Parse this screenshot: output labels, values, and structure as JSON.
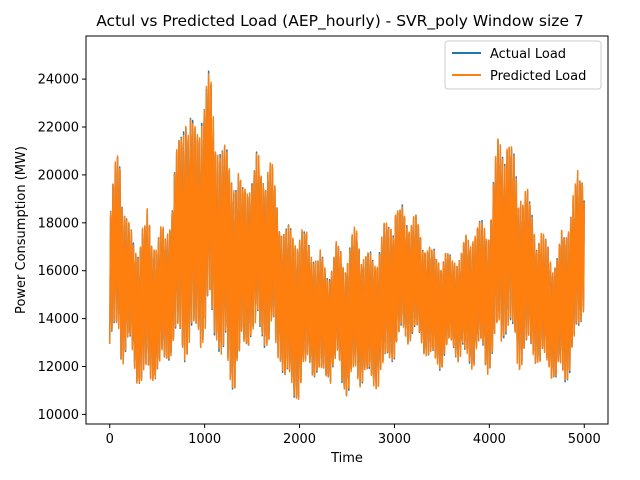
{
  "chart_data": {
    "type": "line",
    "title": "Actul vs Predicted Load (AEP_hourly) - SVR_poly  Window size 7",
    "xlabel": "Time",
    "ylabel": "Power Consumption (MW)",
    "xlim": [
      -250,
      5250
    ],
    "ylim": [
      9600,
      25800
    ],
    "x_ticks": [
      0,
      1000,
      2000,
      3000,
      4000,
      5000
    ],
    "x_tick_labels": [
      "0",
      "1000",
      "2000",
      "3000",
      "4000",
      "5000"
    ],
    "y_ticks": [
      10000,
      12000,
      14000,
      16000,
      18000,
      20000,
      22000,
      24000
    ],
    "y_tick_labels": [
      "10000",
      "12000",
      "14000",
      "16000",
      "18000",
      "20000",
      "22000",
      "24000"
    ],
    "grid": false,
    "legend_position": "top-right",
    "n_points": 5000,
    "envelope_note_x": [
      0,
      50,
      100,
      130,
      200,
      300,
      400,
      500,
      600,
      700,
      800,
      900,
      1000,
      1060,
      1100,
      1200,
      1300,
      1400,
      1500,
      1600,
      1700,
      1800,
      1900,
      2000,
      2100,
      2200,
      2300,
      2400,
      2500,
      2600,
      2700,
      2800,
      2900,
      3000,
      3100,
      3200,
      3300,
      3400,
      3500,
      3600,
      3700,
      3800,
      3900,
      4000,
      4100,
      4150,
      4200,
      4300,
      4400,
      4500,
      4600,
      4700,
      4800,
      4900,
      4950,
      5000
    ],
    "envelope_high": [
      18500,
      20300,
      22100,
      20000,
      18000,
      17500,
      18800,
      17600,
      18000,
      21000,
      23900,
      22000,
      24500,
      24800,
      22500,
      21500,
      21000,
      19800,
      21000,
      20900,
      21000,
      18500,
      18000,
      18200,
      17500,
      16900,
      16500,
      17300,
      17000,
      18200,
      16800,
      17200,
      18000,
      19000,
      18800,
      18500,
      17800,
      17000,
      17000,
      16800,
      17000,
      18000,
      18200,
      18500,
      22100,
      21800,
      22000,
      20200,
      19500,
      18000,
      17500,
      16800,
      18500,
      19500,
      20600,
      21300
    ],
    "envelope_low": [
      12000,
      12600,
      13200,
      11800,
      12500,
      11000,
      11000,
      11300,
      12000,
      12500,
      12000,
      12500,
      12800,
      13300,
      13000,
      11500,
      10800,
      12000,
      13000,
      12700,
      12500,
      12000,
      10300,
      10600,
      11800,
      11200,
      11200,
      11700,
      10400,
      11300,
      11000,
      11000,
      11500,
      12200,
      13000,
      12800,
      12600,
      11800,
      11800,
      12600,
      12000,
      11800,
      12200,
      11600,
      12500,
      13000,
      13200,
      11800,
      12200,
      12000,
      11600,
      11200,
      11000,
      12400,
      13000,
      14500
    ],
    "series": [
      {
        "name": "Actual Load",
        "color": "#1f77b4"
      },
      {
        "name": "Predicted Load",
        "color": "#ff7f0e"
      }
    ]
  }
}
